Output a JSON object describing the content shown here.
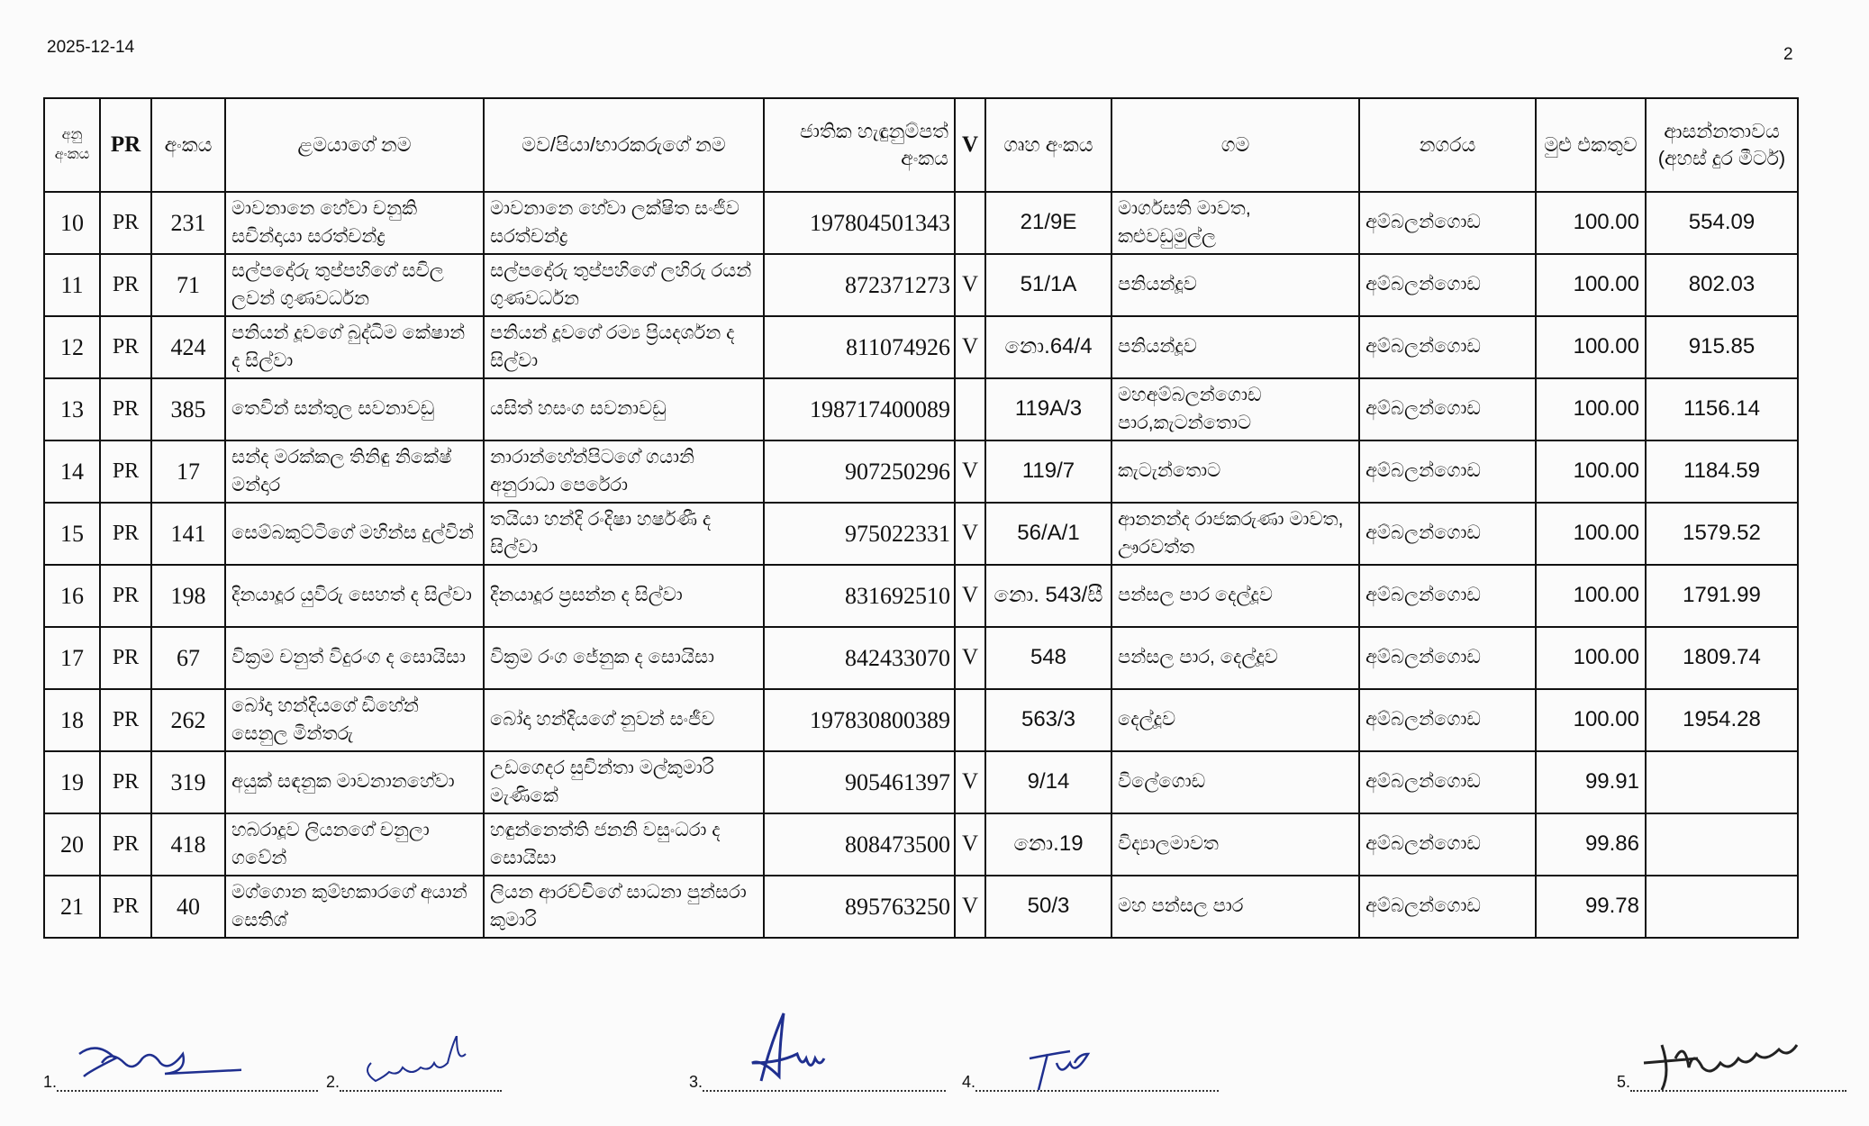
{
  "header": {
    "date": "2025-12-14",
    "page_number": "2"
  },
  "table": {
    "columns": [
      "අනු අංකය",
      "PR",
      "අංකය",
      "ළමයාගේ නම",
      "මව/පියා/භාරකරුගේ නම",
      "ජාතික හැඳුනුම්පත් අංකය",
      "V",
      "ගෘහ අංකය",
      "ගම",
      "නගරය",
      "මුළු එකතුව",
      "ආසන්නතාවය (අහස් දුර මීටර්)"
    ],
    "rows": [
      {
        "no": "10",
        "pr": "PR",
        "id": "231",
        "child": "මාවනානෙ හේවා චනුකි සචින්දායා සරත්චන්ද්‍ර",
        "parent": "මාවනානෙ හේවා ලක්ෂිත සංජීව සරත්චන්ද්‍ර",
        "nic": "197804501343",
        "v": "",
        "house": "21/9E",
        "village": "මාර්ගසති මාවත, කළුවඩුමුල්ල",
        "city": "අම්බලන්ගොඩ",
        "total": "100.00",
        "distance": "554.09"
      },
      {
        "no": "11",
        "pr": "PR",
        "id": "71",
        "child": "සල්පදෝරු තුප්පහිගේ සචිල ලවන් ගුණවර්ධන",
        "parent": "සල්පදෝරු තුප්පහිගේ ලහිරු රයන් ගුණවර්ධන",
        "nic": "872371273",
        "v": "V",
        "house": "51/1A",
        "village": "පනියන්දූව",
        "city": "අම්බලන්ගොඩ",
        "total": "100.00",
        "distance": "802.03"
      },
      {
        "no": "12",
        "pr": "PR",
        "id": "424",
        "child": "පනියන් දූවගේ බුද්ධිම කේෂාන් ද සිල්වා",
        "parent": "පනියන් දූවගේ රම්‍ය ප්‍රියදර්ශන ද සිල්වා",
        "nic": "811074926",
        "v": "V",
        "house": "නො.64/4",
        "village": "පනියන්දූව",
        "city": "අම්බලන්ගොඩ",
        "total": "100.00",
        "distance": "915.85"
      },
      {
        "no": "13",
        "pr": "PR",
        "id": "385",
        "child": "තෙවින් සන්තුල සවනාවඩු",
        "parent": "යසිත් හසංග සවනාවඩු",
        "nic": "198717400089",
        "v": "",
        "house": "119A/3",
        "village": "මහඅම්බලන්ගොඩ පාර,කැටන්තොට",
        "city": "අම්බලන්ගොඩ",
        "total": "100.00",
        "distance": "1156.14"
      },
      {
        "no": "14",
        "pr": "PR",
        "id": "17",
        "child": "සන්ද මරක්කල තිනිඳු නිකේෂ් මන්දාර",
        "parent": "නාරාන්හේන්පිටගේ ගයානි අනුරාධා පෙරේරා",
        "nic": "907250296",
        "v": "V",
        "house": "119/7",
        "village": "කැටැන්තොට",
        "city": "අම්බලන්ගොඩ",
        "total": "100.00",
        "distance": "1184.59"
      },
      {
        "no": "15",
        "pr": "PR",
        "id": "141",
        "child": "සෙම්බකුට්ටිගේ මහින්ස දුල්වින්",
        "parent": "තයියා හන්දි රංදිෂා හර්ෂණී ද සිල්වා",
        "nic": "975022331",
        "v": "V",
        "house": "56/A/1",
        "village": "ආනනන්ද රාජකරුණා මාවත, ඌරවත්ත",
        "city": "අම්බලන්ගොඩ",
        "total": "100.00",
        "distance": "1579.52"
      },
      {
        "no": "16",
        "pr": "PR",
        "id": "198",
        "child": "දිනයාදූර යුවිරු සෙහත් ද සිල්වා",
        "parent": "දිනයාදූර ප්‍රසන්න ද සිල්වා",
        "nic": "831692510",
        "v": "V",
        "house": "නො. 543/සී",
        "village": "පන්සල පාර දෙල්දූව",
        "city": "අම්බලන්ගොඩ",
        "total": "100.00",
        "distance": "1791.99"
      },
      {
        "no": "17",
        "pr": "PR",
        "id": "67",
        "child": "වික්‍රම චනුත් විදුරංග ද සොයිසා",
        "parent": "වික්‍රම රංග ජේනුක ද සොයිසා",
        "nic": "842433070",
        "v": "V",
        "house": "548",
        "village": "පන්සල පාර, දෙල්දූව",
        "city": "අම්බලන්ගොඩ",
        "total": "100.00",
        "distance": "1809.74"
      },
      {
        "no": "18",
        "pr": "PR",
        "id": "262",
        "child": "බෝදා හන්දියගේ ඩිහේන් සෙනුල මින්තරු",
        "parent": "බෝදා හන්දියගේ නුවන් සංජීව",
        "nic": "197830800389",
        "v": "",
        "house": "563/3",
        "village": "දෙල්දූව",
        "city": "අම්බලන්ගොඩ",
        "total": "100.00",
        "distance": "1954.28"
      },
      {
        "no": "19",
        "pr": "PR",
        "id": "319",
        "child": "අයුක් සඳනුක මාවනානහේවා",
        "parent": "උඩගෙදර සුචින්තා මල්කුමාරි මැණිකේ",
        "nic": "905461397",
        "v": "V",
        "house": "9/14",
        "village": "විලේගොඩ",
        "city": "අම්බලන්ගොඩ",
        "total": "99.91",
        "distance": ""
      },
      {
        "no": "20",
        "pr": "PR",
        "id": "418",
        "child": "හබරාදූව ලියනගේ චනුලා ගවේන්",
        "parent": "හඳුන්නෙත්ති ජනනි වසුංධරා ද සොයිසා",
        "nic": "808473500",
        "v": "V",
        "house": "නො.19",
        "village": "විද්‍යාලමාවත",
        "city": "අම්බලන්ගොඩ",
        "total": "99.86",
        "distance": ""
      },
      {
        "no": "21",
        "pr": "PR",
        "id": "40",
        "child": "මග්ගොන කුම්භකාරගේ අයාන් සෙතිශ්",
        "parent": "ලියන ආරච්චිගේ සාධනා පුන්සරා කුමාරි",
        "nic": "895763250",
        "v": "V",
        "house": "50/3",
        "village": "මහ පන්සල පාර",
        "city": "අම්බලන්ගොඩ",
        "total": "99.78",
        "distance": ""
      }
    ]
  },
  "signatures": [
    {
      "label": "1."
    },
    {
      "label": "2."
    },
    {
      "label": "3."
    },
    {
      "label": "4."
    },
    {
      "label": "5."
    }
  ],
  "colors": {
    "ink": "#111111",
    "signature_ink": "#1f2f8f",
    "paper": "#fbfbfb"
  }
}
